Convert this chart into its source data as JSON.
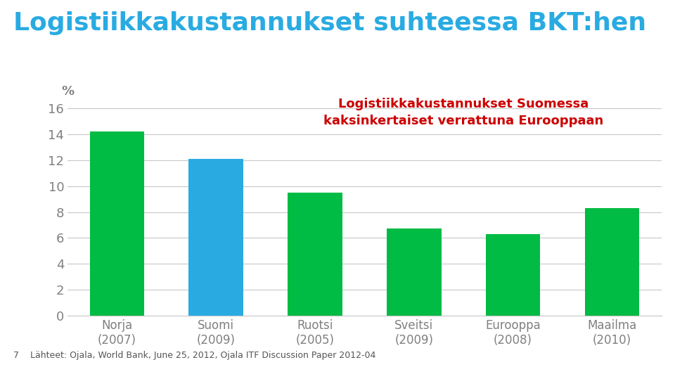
{
  "title": "Logistiikkakustannukset suhteessa BKT:hen",
  "title_color": "#29ABE2",
  "annotation_text": "Logistiikkakustannukset Suomessa\nkaksinkertaiset verrattuna Eurooppaan",
  "annotation_color": "#CC0000",
  "categories": [
    "Norja\n(2007)",
    "Suomi\n(2009)",
    "Ruotsi\n(2005)",
    "Sveitsi\n(2009)",
    "Eurooppa\n(2008)",
    "Maailma\n(2010)"
  ],
  "values": [
    14.2,
    12.1,
    9.5,
    6.7,
    6.3,
    8.3
  ],
  "bar_colors": [
    "#00BB44",
    "#29ABE2",
    "#00BB44",
    "#00BB44",
    "#00BB44",
    "#00BB44"
  ],
  "percent_label": "%",
  "ylim": [
    0,
    17
  ],
  "yticks": [
    0,
    2,
    4,
    6,
    8,
    10,
    12,
    14,
    16
  ],
  "footer_text": "7    Lähteet: Ojala, World Bank, June 25, 2012, Ojala ITF Discussion Paper 2012-04",
  "background_color": "#FFFFFF",
  "grid_color": "#C8C8C8",
  "tick_label_color": "#808080",
  "footer_color": "#555555"
}
